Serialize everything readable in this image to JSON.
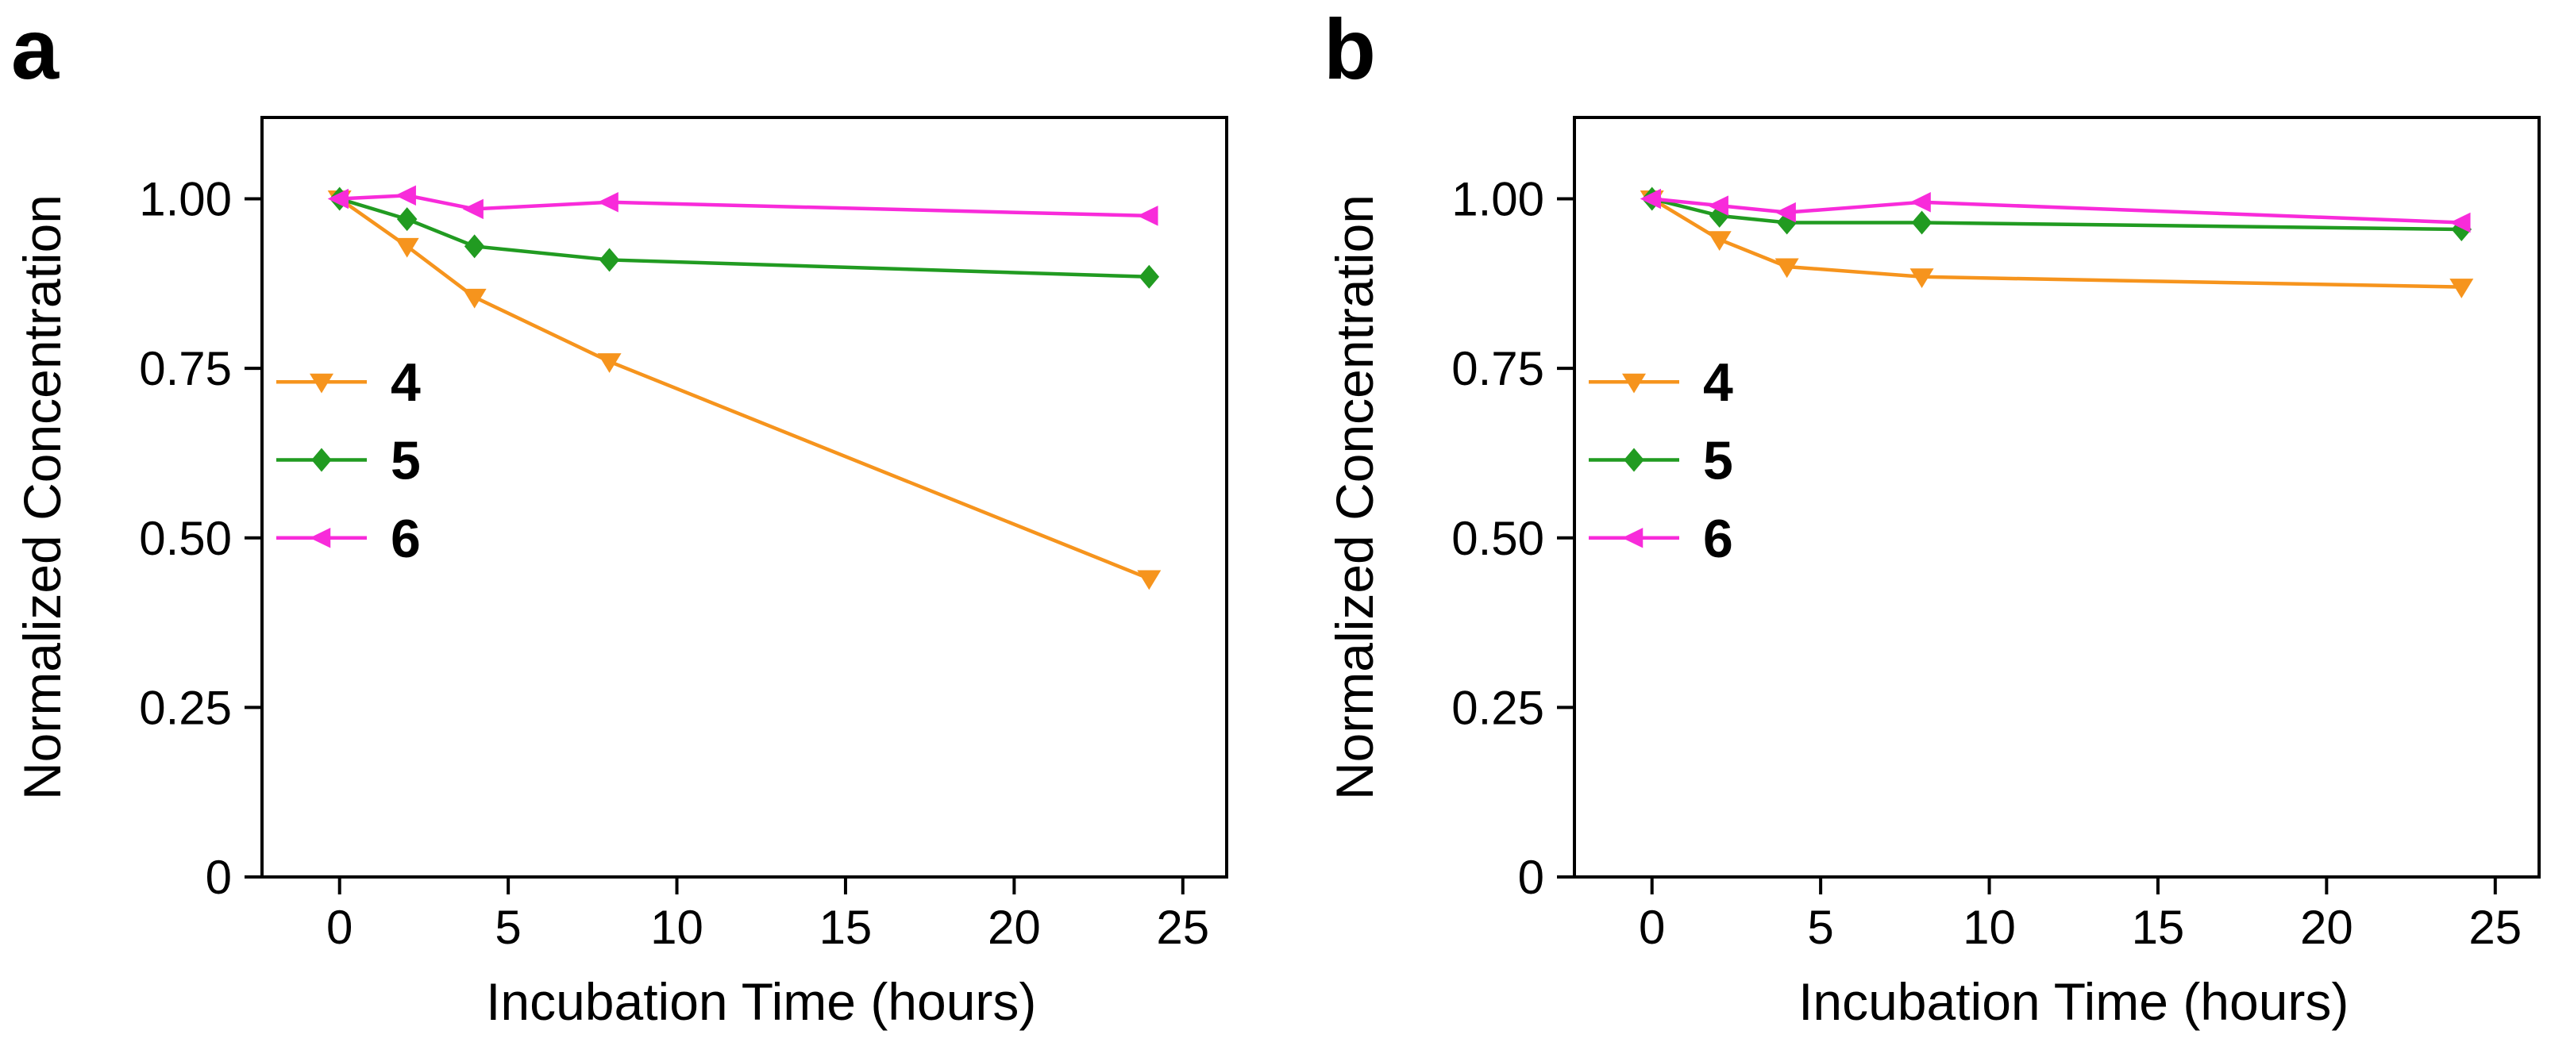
{
  "figure": {
    "background": "#ffffff",
    "axis_color": "#000000"
  },
  "chart_data": [
    {
      "type": "line",
      "panel_label": "a",
      "title": "",
      "xlabel": "Incubation Time (hours)",
      "ylabel": "Normalized Concentration",
      "x": [
        0,
        2,
        4,
        8,
        24
      ],
      "x_ticks": [
        0,
        5,
        10,
        15,
        20,
        25
      ],
      "x_tick_labels": [
        "0",
        "5",
        "10",
        "15",
        "20",
        "25"
      ],
      "y_ticks": [
        0,
        0.25,
        0.5,
        0.75,
        1.0
      ],
      "y_tick_labels": [
        "0",
        "0.25",
        "0.50",
        "0.75",
        "1.00"
      ],
      "xlim": [
        -2.3,
        26.3
      ],
      "ylim": [
        0,
        1.12
      ],
      "grid": false,
      "legend_position": "inside upper-left",
      "series": [
        {
          "name": "4",
          "color": "#F6941D",
          "marker": "triangle-down",
          "values": [
            1.0,
            0.93,
            0.855,
            0.76,
            0.44
          ]
        },
        {
          "name": "5",
          "color": "#219B21",
          "marker": "diamond",
          "values": [
            1.0,
            0.97,
            0.93,
            0.91,
            0.885
          ]
        },
        {
          "name": "6",
          "color": "#F82BDA",
          "marker": "triangle-left",
          "values": [
            1.0,
            1.005,
            0.985,
            0.995,
            0.975
          ]
        }
      ]
    },
    {
      "type": "line",
      "panel_label": "b",
      "title": "",
      "xlabel": "Incubation Time (hours)",
      "ylabel": "Normalized Concentration",
      "x": [
        0,
        2,
        4,
        8,
        24
      ],
      "x_ticks": [
        0,
        5,
        10,
        15,
        20,
        25
      ],
      "x_tick_labels": [
        "0",
        "5",
        "10",
        "15",
        "20",
        "25"
      ],
      "y_ticks": [
        0,
        0.25,
        0.5,
        0.75,
        1.0
      ],
      "y_tick_labels": [
        "0",
        "0.25",
        "0.50",
        "0.75",
        "1.00"
      ],
      "xlim": [
        -2.3,
        26.3
      ],
      "ylim": [
        0,
        1.12
      ],
      "grid": false,
      "legend_position": "inside upper-left",
      "series": [
        {
          "name": "4",
          "color": "#F6941D",
          "marker": "triangle-down",
          "values": [
            1.0,
            0.94,
            0.9,
            0.885,
            0.87
          ]
        },
        {
          "name": "5",
          "color": "#219B21",
          "marker": "diamond",
          "values": [
            1.0,
            0.975,
            0.965,
            0.965,
            0.955
          ]
        },
        {
          "name": "6",
          "color": "#F82BDA",
          "marker": "triangle-left",
          "values": [
            1.0,
            0.99,
            0.98,
            0.995,
            0.965
          ]
        }
      ]
    }
  ]
}
